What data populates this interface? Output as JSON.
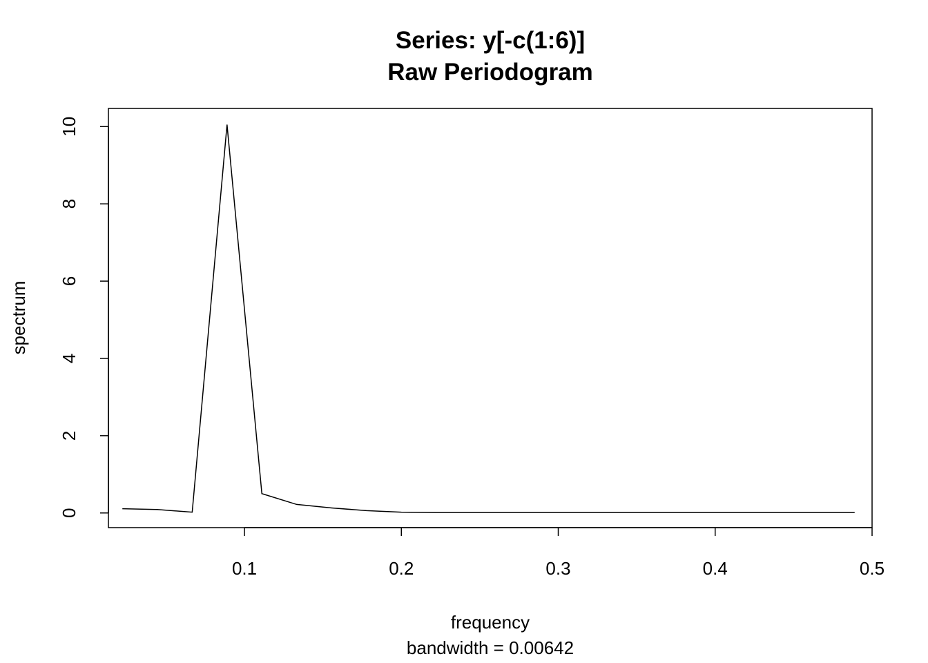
{
  "chart_data": {
    "type": "line",
    "title": "Series: y[-c(1:6)]",
    "subtitle": "Raw Periodogram",
    "xlabel": "frequency",
    "sub": "bandwidth = 0.00642",
    "ylabel": "spectrum",
    "xlim": [
      0.0133,
      0.5
    ],
    "ylim": [
      -0.38,
      10.47
    ],
    "x_ticks": [
      0.1,
      0.2,
      0.3,
      0.4,
      0.5
    ],
    "x_tick_labels": [
      "0.1",
      "0.2",
      "0.3",
      "0.4",
      "0.5"
    ],
    "y_ticks": [
      0,
      2,
      4,
      6,
      8,
      10
    ],
    "y_tick_labels": [
      "0",
      "2",
      "4",
      "6",
      "8",
      "10"
    ],
    "grid": false,
    "line_color": "#000000",
    "series": [
      {
        "x": [
          0.0222,
          0.0444,
          0.0667,
          0.0889,
          0.1111,
          0.1333,
          0.1556,
          0.1778,
          0.2,
          0.2222,
          0.2444,
          0.2667,
          0.2889,
          0.3111,
          0.3333,
          0.3556,
          0.3778,
          0.4,
          0.4222,
          0.4444,
          0.4667,
          0.4889
        ],
        "values": [
          0.11,
          0.09,
          0.02,
          10.05,
          0.5,
          0.22,
          0.13,
          0.06,
          0.02,
          0.01,
          0.01,
          0.01,
          0.01,
          0.01,
          0.01,
          0.01,
          0.01,
          0.01,
          0.01,
          0.01,
          0.01,
          0.01
        ]
      }
    ]
  }
}
